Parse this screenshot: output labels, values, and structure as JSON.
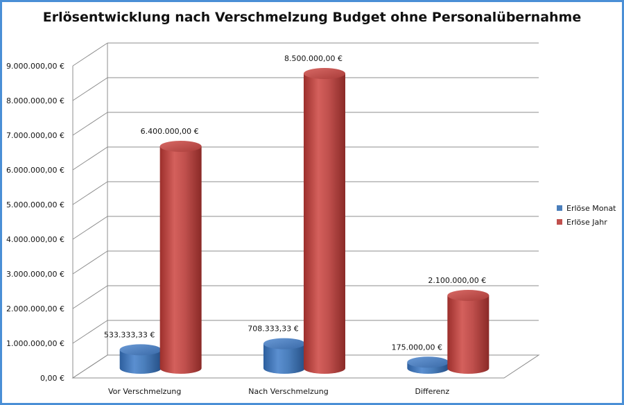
{
  "chart_data": {
    "type": "bar",
    "title": "Erlösentwicklung nach Verschmelzung Budget ohne Personalübernahme",
    "categories": [
      "Vor Verschmelzung",
      "Nach Verschmelzung",
      "Differenz"
    ],
    "series": [
      {
        "name": "Erlöse Monat",
        "values": [
          533333.33,
          708333.33,
          175000.0
        ],
        "labels": [
          "533.333,33 €",
          "708.333,33 €",
          "175.000,00 €"
        ],
        "color": "#4a7ebb"
      },
      {
        "name": "Erlöse Jahr",
        "values": [
          6400000,
          8500000,
          2100000
        ],
        "labels": [
          "6.400.000,00 €",
          "8.500.000,00 €",
          "2.100.000,00 €"
        ],
        "color": "#c0504d"
      }
    ],
    "ylim": [
      0,
      9000000
    ],
    "yticks": [
      0,
      1000000,
      2000000,
      3000000,
      4000000,
      5000000,
      6000000,
      7000000,
      8000000,
      9000000
    ],
    "ytick_labels": [
      "0,00 €",
      "1.000.000,00 €",
      "2.000.000,00 €",
      "3.000.000,00 €",
      "4.000.000,00 €",
      "5.000.000,00 €",
      "6.000.000,00 €",
      "7.000.000,00 €",
      "8.000.000,00 €",
      "9.000.000,00 €"
    ],
    "style": "3d-cylinder",
    "grid": true,
    "legend_position": "right"
  }
}
